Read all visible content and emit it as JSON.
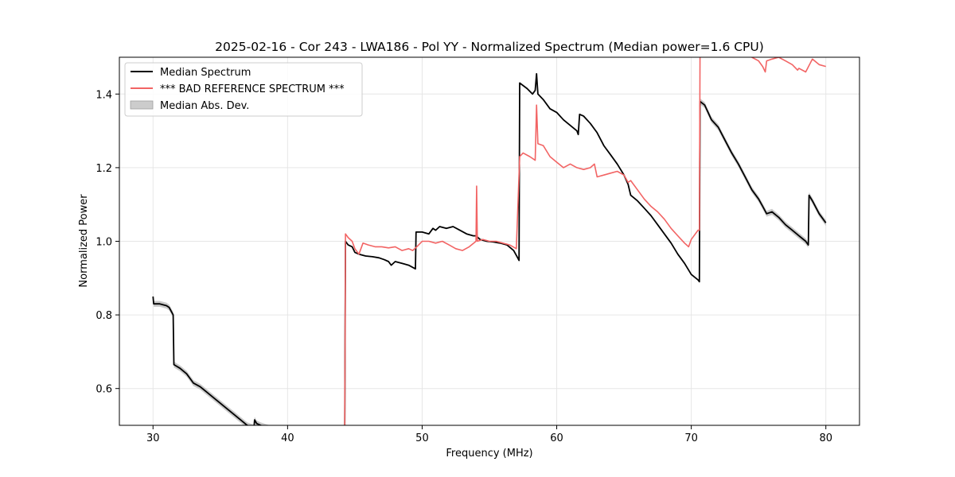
{
  "chart_data": {
    "type": "line",
    "title": "2025-02-16 - Cor 243 - LWA186 - Pol YY - Normalized Spectrum (Median power=1.6 CPU)",
    "xlabel": "Frequency (MHz)",
    "ylabel": "Normalized Power",
    "xlim": [
      27.5,
      82.5
    ],
    "ylim": [
      0.5,
      1.5
    ],
    "xticks": [
      30,
      40,
      50,
      60,
      70,
      80
    ],
    "yticks": [
      0.6,
      0.8,
      1.0,
      1.2,
      1.4
    ],
    "xtick_labels": [
      "30",
      "40",
      "50",
      "60",
      "70",
      "80"
    ],
    "ytick_labels": [
      "0.6",
      "0.8",
      "1.0",
      "1.2",
      "1.4"
    ],
    "grid": true,
    "legend_position": "top-left",
    "legend": [
      "Median Spectrum",
      "*** BAD REFERENCE SPECTRUM ***",
      "Median Abs. Dev."
    ],
    "colors": {
      "median": "#000000",
      "reference": "#f26464",
      "mad": "#b4b4b4"
    },
    "series": [
      {
        "name": "Median Spectrum",
        "points": [
          [
            30.0,
            0.85
          ],
          [
            30.05,
            0.83
          ],
          [
            30.5,
            0.83
          ],
          [
            31.0,
            0.825
          ],
          [
            31.2,
            0.82
          ],
          [
            31.5,
            0.8
          ],
          [
            31.55,
            0.665
          ],
          [
            32.0,
            0.655
          ],
          [
            32.5,
            0.64
          ],
          [
            32.8,
            0.625
          ],
          [
            33.0,
            0.615
          ],
          [
            33.5,
            0.605
          ],
          [
            34.0,
            0.59
          ],
          [
            34.5,
            0.575
          ],
          [
            35.0,
            0.56
          ],
          [
            35.5,
            0.545
          ],
          [
            36.0,
            0.53
          ],
          [
            36.5,
            0.515
          ],
          [
            37.0,
            0.5
          ],
          [
            37.3,
            0.496
          ],
          [
            37.5,
            0.493
          ],
          [
            37.55,
            0.515
          ],
          [
            37.7,
            0.505
          ],
          [
            38.0,
            0.5
          ],
          [
            38.5,
            0.494
          ],
          [
            39.0,
            0.49
          ],
          [
            44.25,
            0.5
          ],
          [
            44.3,
            1.0
          ],
          [
            44.5,
            0.99
          ],
          [
            44.8,
            0.985
          ],
          [
            45.0,
            0.97
          ],
          [
            45.3,
            0.965
          ],
          [
            45.8,
            0.96
          ],
          [
            46.3,
            0.958
          ],
          [
            46.8,
            0.955
          ],
          [
            47.2,
            0.95
          ],
          [
            47.5,
            0.945
          ],
          [
            47.7,
            0.935
          ],
          [
            48.0,
            0.945
          ],
          [
            48.5,
            0.94
          ],
          [
            49.0,
            0.935
          ],
          [
            49.5,
            0.925
          ],
          [
            49.55,
            1.025
          ],
          [
            50.0,
            1.025
          ],
          [
            50.5,
            1.02
          ],
          [
            50.8,
            1.035
          ],
          [
            51.0,
            1.03
          ],
          [
            51.3,
            1.04
          ],
          [
            51.8,
            1.035
          ],
          [
            52.3,
            1.04
          ],
          [
            52.8,
            1.03
          ],
          [
            53.3,
            1.02
          ],
          [
            53.8,
            1.015
          ],
          [
            54.0,
            1.015
          ],
          [
            54.3,
            1.005
          ],
          [
            54.8,
            1.0
          ],
          [
            55.3,
            0.998
          ],
          [
            55.8,
            0.995
          ],
          [
            56.3,
            0.99
          ],
          [
            56.8,
            0.975
          ],
          [
            57.1,
            0.955
          ],
          [
            57.2,
            0.948
          ],
          [
            57.25,
            1.43
          ],
          [
            57.8,
            1.415
          ],
          [
            58.2,
            1.4
          ],
          [
            58.4,
            1.41
          ],
          [
            58.5,
            1.455
          ],
          [
            58.6,
            1.4
          ],
          [
            59.0,
            1.385
          ],
          [
            59.5,
            1.36
          ],
          [
            60.0,
            1.35
          ],
          [
            60.5,
            1.33
          ],
          [
            61.0,
            1.315
          ],
          [
            61.5,
            1.3
          ],
          [
            61.6,
            1.29
          ],
          [
            61.7,
            1.345
          ],
          [
            62.0,
            1.34
          ],
          [
            62.5,
            1.32
          ],
          [
            63.0,
            1.295
          ],
          [
            63.5,
            1.26
          ],
          [
            64.0,
            1.235
          ],
          [
            64.5,
            1.21
          ],
          [
            65.0,
            1.18
          ],
          [
            65.3,
            1.155
          ],
          [
            65.5,
            1.125
          ],
          [
            66.0,
            1.11
          ],
          [
            66.5,
            1.09
          ],
          [
            67.0,
            1.07
          ],
          [
            67.5,
            1.045
          ],
          [
            68.0,
            1.02
          ],
          [
            68.5,
            0.995
          ],
          [
            69.0,
            0.965
          ],
          [
            69.5,
            0.94
          ],
          [
            70.0,
            0.91
          ],
          [
            70.5,
            0.895
          ],
          [
            70.6,
            0.89
          ],
          [
            70.65,
            1.38
          ],
          [
            71.0,
            1.37
          ],
          [
            71.5,
            1.33
          ],
          [
            72.0,
            1.31
          ],
          [
            72.5,
            1.275
          ],
          [
            73.0,
            1.24
          ],
          [
            73.5,
            1.21
          ],
          [
            74.0,
            1.175
          ],
          [
            74.5,
            1.14
          ],
          [
            75.0,
            1.115
          ],
          [
            75.3,
            1.095
          ],
          [
            75.6,
            1.075
          ],
          [
            76.0,
            1.08
          ],
          [
            76.5,
            1.065
          ],
          [
            77.0,
            1.045
          ],
          [
            77.5,
            1.03
          ],
          [
            78.0,
            1.015
          ],
          [
            78.5,
            1.0
          ],
          [
            78.7,
            0.99
          ],
          [
            78.75,
            1.125
          ],
          [
            79.0,
            1.11
          ],
          [
            79.5,
            1.075
          ],
          [
            80.0,
            1.05
          ]
        ]
      },
      {
        "name": "*** BAD REFERENCE SPECTRUM ***",
        "points": [
          [
            44.25,
            0.5
          ],
          [
            44.3,
            1.02
          ],
          [
            44.5,
            1.01
          ],
          [
            44.8,
            1.0
          ],
          [
            45.0,
            0.98
          ],
          [
            45.3,
            0.965
          ],
          [
            45.6,
            0.995
          ],
          [
            46.0,
            0.99
          ],
          [
            46.5,
            0.985
          ],
          [
            47.0,
            0.985
          ],
          [
            47.5,
            0.982
          ],
          [
            48.0,
            0.985
          ],
          [
            48.5,
            0.975
          ],
          [
            49.0,
            0.98
          ],
          [
            49.3,
            0.975
          ],
          [
            49.6,
            0.985
          ],
          [
            50.0,
            1.0
          ],
          [
            50.5,
            1.0
          ],
          [
            51.0,
            0.995
          ],
          [
            51.5,
            1.0
          ],
          [
            52.0,
            0.99
          ],
          [
            52.5,
            0.98
          ],
          [
            53.0,
            0.975
          ],
          [
            53.5,
            0.985
          ],
          [
            54.0,
            1.0
          ],
          [
            54.05,
            1.15
          ],
          [
            54.1,
            1.0
          ],
          [
            54.5,
            1.005
          ],
          [
            55.0,
            1.0
          ],
          [
            55.5,
            1.0
          ],
          [
            56.0,
            0.995
          ],
          [
            56.5,
            0.99
          ],
          [
            57.0,
            0.98
          ],
          [
            57.25,
            1.23
          ],
          [
            57.5,
            1.24
          ],
          [
            58.0,
            1.23
          ],
          [
            58.4,
            1.22
          ],
          [
            58.5,
            1.37
          ],
          [
            58.6,
            1.265
          ],
          [
            59.0,
            1.26
          ],
          [
            59.5,
            1.23
          ],
          [
            60.0,
            1.215
          ],
          [
            60.5,
            1.2
          ],
          [
            61.0,
            1.21
          ],
          [
            61.5,
            1.2
          ],
          [
            62.0,
            1.195
          ],
          [
            62.5,
            1.2
          ],
          [
            62.8,
            1.21
          ],
          [
            63.0,
            1.175
          ],
          [
            63.5,
            1.18
          ],
          [
            64.0,
            1.185
          ],
          [
            64.5,
            1.19
          ],
          [
            65.0,
            1.18
          ],
          [
            65.3,
            1.16
          ],
          [
            65.5,
            1.165
          ],
          [
            66.0,
            1.14
          ],
          [
            66.5,
            1.115
          ],
          [
            67.0,
            1.095
          ],
          [
            67.5,
            1.08
          ],
          [
            68.0,
            1.06
          ],
          [
            68.5,
            1.035
          ],
          [
            69.0,
            1.015
          ],
          [
            69.5,
            0.995
          ],
          [
            69.8,
            0.985
          ],
          [
            70.0,
            1.005
          ],
          [
            70.5,
            1.03
          ],
          [
            70.6,
            1.03
          ],
          [
            70.65,
            1.5
          ]
        ]
      },
      {
        "name": "*** BAD REFERENCE SPECTRUM ***",
        "points": [
          [
            74.5,
            1.5
          ],
          [
            75.0,
            1.49
          ],
          [
            75.3,
            1.475
          ],
          [
            75.5,
            1.46
          ],
          [
            75.6,
            1.49
          ],
          [
            76.0,
            1.495
          ],
          [
            76.5,
            1.5
          ],
          [
            77.0,
            1.49
          ],
          [
            77.5,
            1.48
          ],
          [
            77.9,
            1.465
          ],
          [
            78.0,
            1.47
          ],
          [
            78.5,
            1.46
          ],
          [
            79.0,
            1.495
          ],
          [
            79.5,
            1.48
          ],
          [
            80.0,
            1.475
          ]
        ]
      }
    ]
  }
}
